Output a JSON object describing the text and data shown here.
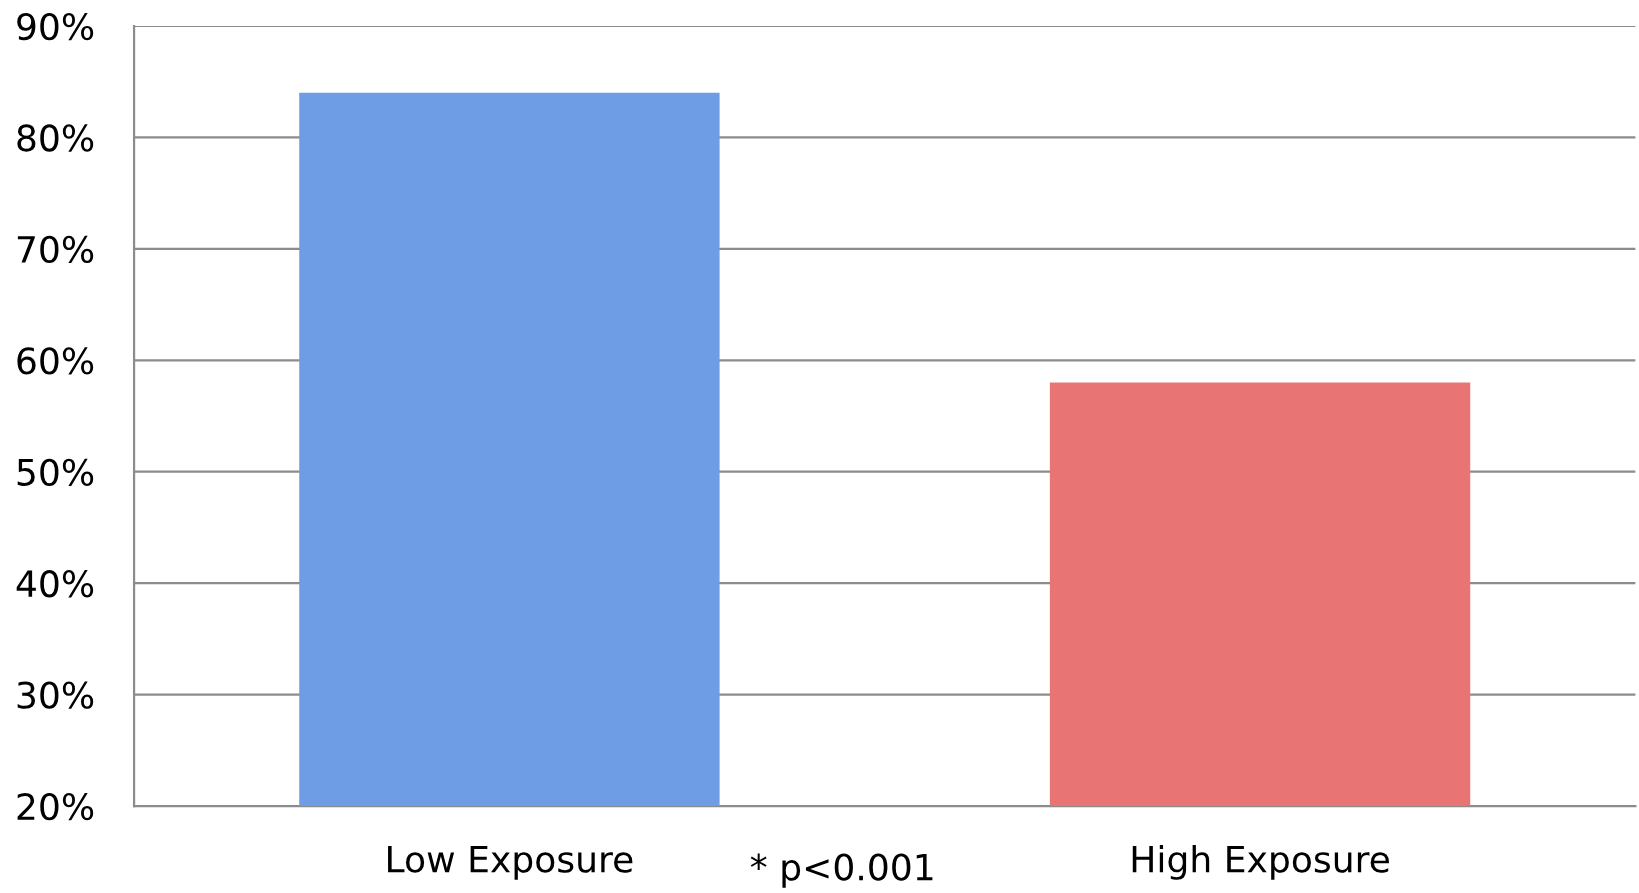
{
  "chart_data": {
    "type": "bar",
    "categories": [
      "Low Exposure",
      "High Exposure"
    ],
    "values": [
      84,
      58
    ],
    "colors": [
      "#6e9de6",
      "#e87474"
    ],
    "ylim": [
      20,
      90
    ],
    "yticks": [
      {
        "value": 20,
        "label": "20%"
      },
      {
        "value": 30,
        "label": "30%"
      },
      {
        "value": 40,
        "label": "40%"
      },
      {
        "value": 50,
        "label": "50%"
      },
      {
        "value": 60,
        "label": "60%"
      },
      {
        "value": 70,
        "label": "70%"
      },
      {
        "value": 80,
        "label": "80%"
      },
      {
        "value": 90,
        "label": "90%"
      }
    ],
    "grid": "y",
    "annotations": [
      "* p<0.001"
    ]
  }
}
